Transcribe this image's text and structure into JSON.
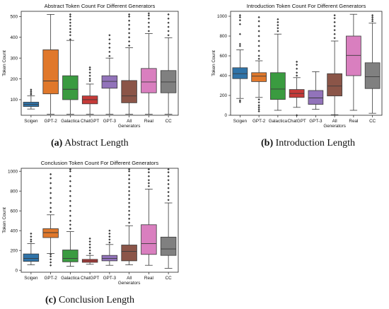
{
  "colors": {
    "Scigen": "#2f73a8",
    "GPT-2": "#e0782b",
    "Galactica": "#3a9b40",
    "ChatGPT": "#c63a38",
    "GPT-3": "#9273ba",
    "All Generators": "#8b5548",
    "Real": "#d97fbf",
    "CC": "#808080"
  },
  "category_labels": [
    "Scigen",
    "GPT-2",
    "Galactica",
    "ChatGPT",
    "GPT-3",
    "All\nGenerators",
    "Real",
    "CC"
  ],
  "chart_data": [
    {
      "type": "box",
      "title": "Abstract Token Count For Different Generators",
      "ylabel": "Token Count",
      "xlabel": "",
      "ylim": [
        25,
        525
      ],
      "yticks": [
        100,
        200,
        300,
        400,
        500
      ],
      "grid": false,
      "categories": [
        "Scigen",
        "GPT-2",
        "Galactica",
        "ChatGPT",
        "GPT-3",
        "All Generators",
        "Real",
        "CC"
      ],
      "boxes": [
        {
          "whislo": 55,
          "q1": 67,
          "med": 77,
          "q3": 88,
          "whishi": 118,
          "fliers": [
            125,
            132,
            140,
            148
          ]
        },
        {
          "whislo": 30,
          "q1": 128,
          "med": 190,
          "q3": 340,
          "whishi": 510,
          "fliers": []
        },
        {
          "whislo": 30,
          "q1": 100,
          "med": 150,
          "q3": 215,
          "whishi": 385,
          "fliers": [
            390,
            410,
            425,
            440,
            455,
            470,
            485,
            500,
            510
          ]
        },
        {
          "whislo": 30,
          "q1": 80,
          "med": 100,
          "q3": 118,
          "whishi": 175,
          "fliers": [
            190,
            200,
            215,
            230,
            245,
            255
          ]
        },
        {
          "whislo": 30,
          "q1": 155,
          "med": 188,
          "q3": 215,
          "whishi": 300,
          "fliers": [
            310,
            330,
            350,
            370,
            390,
            410
          ]
        },
        {
          "whislo": 30,
          "q1": 85,
          "med": 118,
          "q3": 192,
          "whishi": 350,
          "fliers": [
            360,
            380,
            400,
            420,
            440,
            460,
            480,
            500,
            510
          ]
        },
        {
          "whislo": 30,
          "q1": 133,
          "med": 185,
          "q3": 250,
          "whishi": 418,
          "fliers": [
            430,
            450,
            470,
            490,
            505,
            515
          ]
        },
        {
          "whislo": 30,
          "q1": 133,
          "med": 185,
          "q3": 240,
          "whishi": 398,
          "fliers": [
            410,
            430,
            450,
            470,
            490,
            510
          ]
        }
      ]
    },
    {
      "type": "box",
      "title": "Introduction Token Count For Different Generators",
      "ylabel": "Token Count",
      "xlabel": "",
      "ylim": [
        0,
        1050
      ],
      "yticks": [
        0,
        200,
        400,
        600,
        800,
        1000
      ],
      "grid": false,
      "categories": [
        "Scigen",
        "GPT-2",
        "Galactica",
        "ChatGPT",
        "GPT-3",
        "All Generators",
        "Real",
        "CC"
      ],
      "boxes": [
        {
          "whislo": 170,
          "q1": 370,
          "med": 420,
          "q3": 480,
          "whishi": 660,
          "fliers": [
            150,
            135,
            700,
            720,
            820,
            920,
            960,
            990,
            1010
          ]
        },
        {
          "whislo": 180,
          "q1": 340,
          "med": 395,
          "q3": 430,
          "whishi": 550,
          "fliers": [
            40,
            60,
            80,
            100,
            130,
            160,
            570,
            600,
            650,
            700,
            750,
            800,
            850,
            900,
            950,
            990
          ]
        },
        {
          "whislo": 50,
          "q1": 160,
          "med": 265,
          "q3": 430,
          "whishi": 820,
          "fliers": [
            850,
            880,
            910,
            940,
            970
          ]
        },
        {
          "whislo": 80,
          "q1": 180,
          "med": 220,
          "q3": 260,
          "whishi": 380,
          "fliers": [
            0,
            400,
            430,
            470,
            510,
            540
          ]
        },
        {
          "whislo": 60,
          "q1": 110,
          "med": 175,
          "q3": 250,
          "whishi": 440,
          "fliers": []
        },
        {
          "whislo": 5,
          "q1": 195,
          "med": 295,
          "q3": 420,
          "whishi": 750,
          "fliers": [
            780,
            820,
            860,
            900,
            940,
            980,
            1010
          ]
        },
        {
          "whislo": 50,
          "q1": 400,
          "med": 605,
          "q3": 800,
          "whishi": 1020,
          "fliers": []
        },
        {
          "whislo": 20,
          "q1": 270,
          "med": 390,
          "q3": 530,
          "whishi": 930,
          "fliers": [
            950,
            970,
            990,
            1010
          ]
        }
      ]
    },
    {
      "type": "box",
      "title": "Conclusion Token Count For Different Generators",
      "ylabel": "Token Count",
      "xlabel": "",
      "ylim": [
        -20,
        1030
      ],
      "yticks": [
        0,
        200,
        400,
        600,
        800,
        1000
      ],
      "grid": false,
      "categories": [
        "Scigen",
        "GPT-2",
        "Galactica",
        "ChatGPT",
        "GPT-3",
        "All Generators",
        "Real",
        "CC"
      ],
      "boxes": [
        {
          "whislo": 55,
          "q1": 90,
          "med": 120,
          "q3": 165,
          "whishi": 270,
          "fliers": [
            290,
            310,
            340,
            370
          ]
        },
        {
          "whislo": 170,
          "q1": 330,
          "med": 380,
          "q3": 420,
          "whishi": 560,
          "fliers": [
            50,
            80,
            110,
            140,
            160,
            590,
            630,
            680,
            730,
            780,
            830,
            880,
            930,
            970
          ]
        },
        {
          "whislo": 40,
          "q1": 85,
          "med": 120,
          "q3": 205,
          "whishi": 390,
          "fliers": [
            420,
            460,
            500,
            550,
            600,
            650,
            700,
            750,
            800,
            850,
            900,
            950,
            1000,
            1020
          ]
        },
        {
          "whislo": 60,
          "q1": 80,
          "med": 95,
          "q3": 110,
          "whishi": 150,
          "fliers": [
            170,
            200,
            230,
            260,
            290,
            320
          ]
        },
        {
          "whislo": 50,
          "q1": 95,
          "med": 120,
          "q3": 150,
          "whishi": 260,
          "fliers": [
            280,
            310,
            340,
            370,
            400
          ]
        },
        {
          "whislo": 55,
          "q1": 95,
          "med": 190,
          "q3": 255,
          "whishi": 450,
          "fliers": [
            480,
            520,
            560,
            600,
            640,
            680,
            720,
            760,
            800,
            840,
            880,
            920,
            960,
            1000,
            1020
          ]
        },
        {
          "whislo": 50,
          "q1": 160,
          "med": 270,
          "q3": 460,
          "whishi": 820,
          "fliers": [
            850,
            880,
            910,
            950,
            990,
            1020
          ]
        },
        {
          "whislo": 20,
          "q1": 150,
          "med": 215,
          "q3": 335,
          "whishi": 680,
          "fliers": [
            710,
            750,
            790,
            830,
            870,
            910,
            950,
            990,
            1020
          ]
        }
      ]
    }
  ],
  "captions": [
    {
      "tag": "(a)",
      "text": "Abstract Length"
    },
    {
      "tag": "(b)",
      "text": "Introduction Length"
    },
    {
      "tag": "(c)",
      "text": "Conclusion Length"
    }
  ]
}
